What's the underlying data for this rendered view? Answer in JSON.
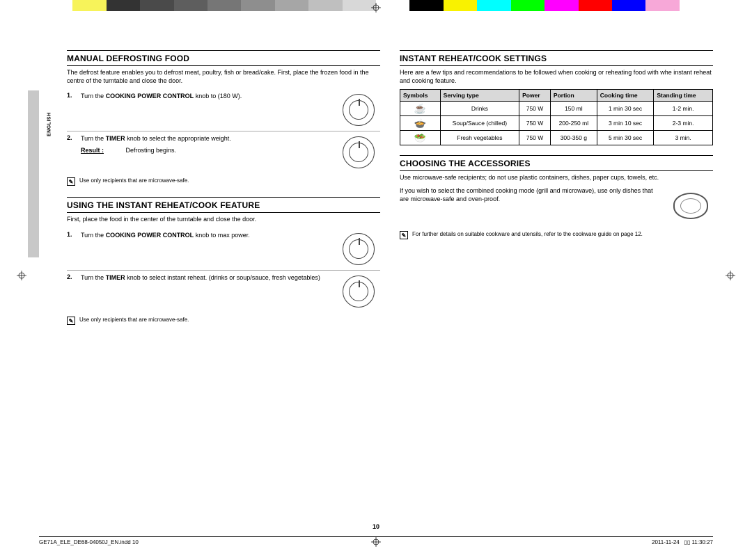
{
  "colorbar": [
    "#ffffff",
    "#f7f35a",
    "#333333",
    "#4a4a4a",
    "#5e5e5e",
    "#767676",
    "#8e8e8e",
    "#a6a6a6",
    "#bfbfbf",
    "#d8d8d8",
    "#ffffff",
    "#000000",
    "#f9f200",
    "#00ffff",
    "#00ff00",
    "#ff00ff",
    "#ff0000",
    "#0000ff",
    "#f7a8d8",
    "#ffffff"
  ],
  "lang_tab": "ENGLISH",
  "left": {
    "h1": "MANUAL DEFROSTING FOOD",
    "intro": "The defrost feature enables you to defrost meat, poultry, fish or bread/cake. First, place the frozen food in the centre of the turntable and close the door.",
    "step1_pre": "Turn the ",
    "step1_bold": "COOKING POWER CONTROL",
    "step1_post": " knob to (180 W).",
    "step2_pre": "Turn the ",
    "step2_bold": "TIMER",
    "step2_post": " knob to select the appropriate weight.",
    "result_label": "Result :",
    "result_text": "Defrosting begins.",
    "note1": "Use only recipients that are microwave-safe.",
    "h2": "USING THE INSTANT REHEAT/COOK FEATURE",
    "intro2": "First, place the food in the center of the turntable and close the door.",
    "step3_pre": "Turn the ",
    "step3_bold": "COOKING POWER CONTROL",
    "step3_post": " knob to max power.",
    "step4_pre": "Turn the ",
    "step4_bold": "TIMER",
    "step4_post": " knob to select instant reheat. (drinks or soup/sauce, fresh vegetables)",
    "note2": "Use only recipients that are microwave-safe."
  },
  "right": {
    "h1": "INSTANT REHEAT/COOK SETTINGS",
    "intro": "Here are a few tips and recommendations to be followed when cooking or reheating food with whe instant reheat and cooking feature.",
    "th_sym": "Symbols",
    "th_serv": "Serving type",
    "th_pow": "Power",
    "th_por": "Portion",
    "th_cook": "Cooking time",
    "th_stand": "Standing time",
    "rows": [
      {
        "sym": "☕",
        "serv": "Drinks",
        "pow": "750 W",
        "por": "150 ml",
        "cook": "1 min 30 sec",
        "stand": "1-2 min."
      },
      {
        "sym": "🍲",
        "serv": "Soup/Sauce (chilled)",
        "pow": "750 W",
        "por": "200-250 ml",
        "cook": "3 min 10 sec",
        "stand": "2-3 min."
      },
      {
        "sym": "🥗",
        "serv": "Fresh vegetables",
        "pow": "750 W",
        "por": "300-350 g",
        "cook": "5 min 30 sec",
        "stand": "3 min."
      }
    ],
    "h2": "CHOOSING THE ACCESSORIES",
    "acc_p1": "Use microwave-safe recipients; do not use plastic containers, dishes, paper cups, towels, etc.",
    "acc_p2": "If you wish to select the combined cooking mode (grill and microwave), use only dishes that are microwave-safe and oven-proof.",
    "acc_note": "For further details on suitable cookware and utensils, refer to the cookware guide on page 12."
  },
  "page_number": "10",
  "footer_left": "GE71A_ELE_DE68-04050J_EN.indd   10",
  "footer_date": "2011-11-24",
  "footer_time": "▯▯ 11:30:27"
}
